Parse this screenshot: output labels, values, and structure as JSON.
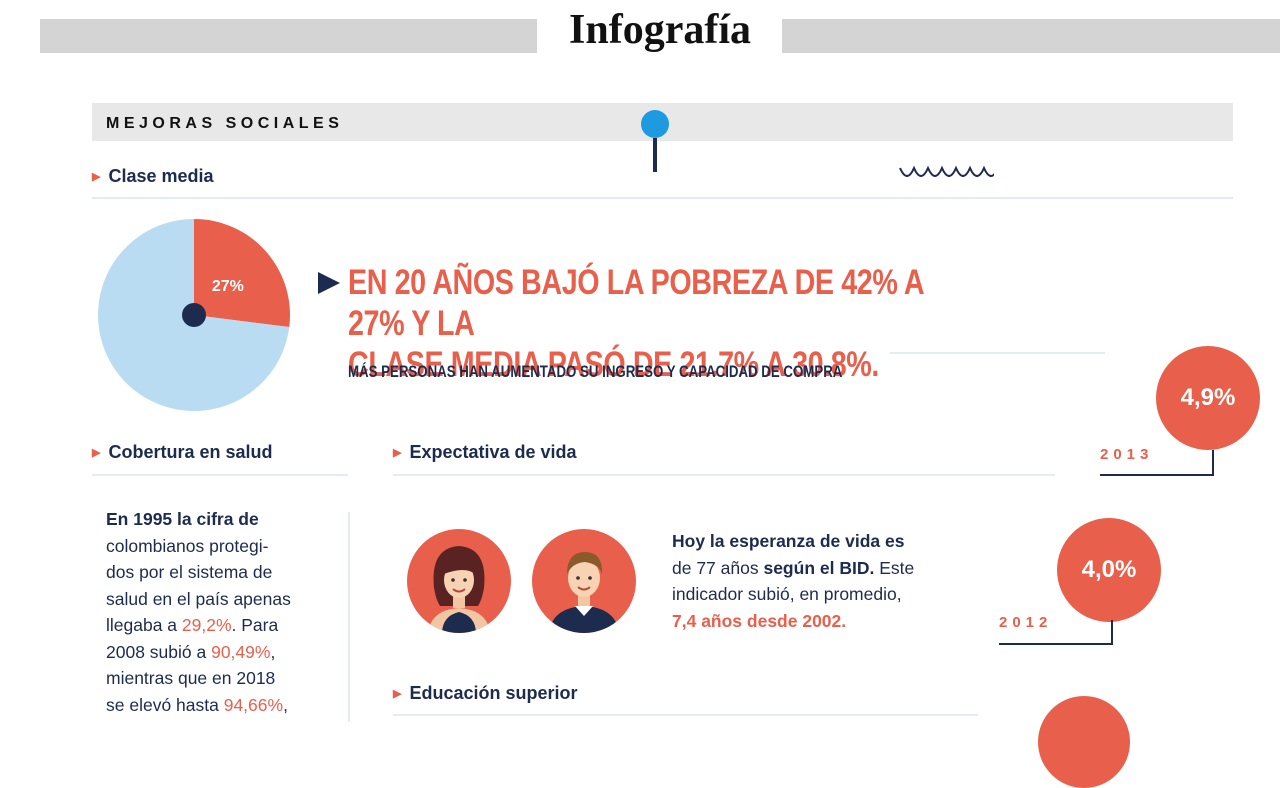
{
  "header": {
    "title": "Infografía"
  },
  "section": {
    "label": "MEJORAS SOCIALES"
  },
  "clase_media": {
    "heading": "Clase media",
    "pie_label": "27%",
    "headline_line1": "EN 20 AÑOS BAJÓ LA POBREZA DE 42% A 27% Y LA",
    "headline_line2": "CLASE MEDIA PASÓ DE 21.7% A 30.8%.",
    "subheadline": "MÁS PERSONAS HAN AUMENTADO SU INGRESO Y CAPACIDAD DE COMPRA"
  },
  "chart_data": {
    "type": "pie",
    "categories": [
      "",
      ""
    ],
    "values": [
      27,
      73
    ],
    "data_labels": [
      "27%",
      ""
    ],
    "colors": [
      "#e8604c",
      "#b9dcf2"
    ]
  },
  "salud": {
    "heading": "Cobertura en salud",
    "p1_bold": "En 1995 la cifra de",
    "l2": "colombianos protegi-",
    "l3": "dos por el sistema de",
    "l4": "salud en el país apenas",
    "l5_a": "llegaba a ",
    "l5_val": "29,2%",
    "l5_b": ". Para",
    "l6_a": "2008 subió a ",
    "l6_val": "90,49%",
    "l6_b": ",",
    "l7": "mientras que en 2018",
    "l8_a": "se elevó hasta ",
    "l8_val": "94,66%",
    "l8_b": ","
  },
  "vida": {
    "heading": "Expectativa de vida",
    "l1_bold": "Hoy la esperanza de vida es",
    "l2_a": "de 77 años ",
    "l2_bold": "según el BID.",
    "l2_b": " Este",
    "l3": "indicador subió, en promedio,",
    "l4_accent": "7,4 años desde 2002."
  },
  "educacion": {
    "heading": "Educación superior"
  },
  "timeline": [
    {
      "value": "4,9%",
      "year": "2013"
    },
    {
      "value": "4,0%",
      "year": "2012"
    }
  ],
  "colors": {
    "accent": "#e8604c",
    "navy": "#1d2b4f",
    "light_blue": "#b9dcf2",
    "pin_blue": "#1e9be0"
  },
  "icons": [
    "woman-avatar-icon",
    "man-avatar-icon",
    "wave-decoration-icon",
    "map-pin-icon"
  ]
}
